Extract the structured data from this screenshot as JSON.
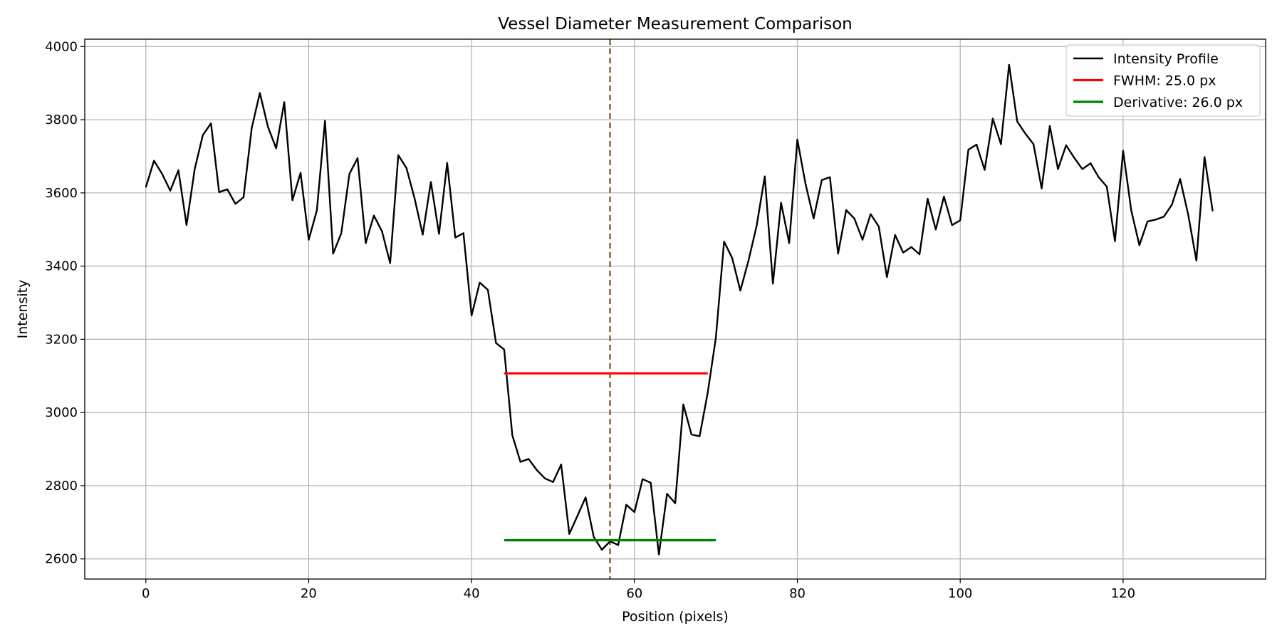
{
  "chart_data": {
    "type": "line",
    "title": "Vessel Diameter Measurement Comparison",
    "xlabel": "Position (pixels)",
    "ylabel": "Intensity",
    "xlim": [
      -7.5,
      137.5
    ],
    "ylim": [
      2545,
      4020
    ],
    "xticks": [
      0,
      20,
      40,
      60,
      80,
      100,
      120
    ],
    "yticks": [
      2600,
      2800,
      3000,
      3200,
      3400,
      3600,
      3800,
      4000
    ],
    "grid": true,
    "legend_position": "top-right",
    "series": [
      {
        "name": "Intensity Profile",
        "color": "#000000",
        "x": [
          0,
          1,
          2,
          3,
          4,
          5,
          6,
          7,
          8,
          9,
          10,
          11,
          12,
          13,
          14,
          15,
          16,
          17,
          18,
          19,
          20,
          21,
          22,
          23,
          24,
          25,
          26,
          27,
          28,
          29,
          30,
          31,
          32,
          33,
          34,
          35,
          36,
          37,
          38,
          39,
          40,
          41,
          42,
          43,
          44,
          45,
          46,
          47,
          48,
          49,
          50,
          51,
          52,
          53,
          54,
          55,
          56,
          57,
          58,
          59,
          60,
          61,
          62,
          63,
          64,
          65,
          66,
          67,
          68,
          69,
          70,
          71,
          72,
          73,
          74,
          75,
          76,
          77,
          78,
          79,
          80,
          81,
          82,
          83,
          84,
          85,
          86,
          87,
          88,
          89,
          90,
          91,
          92,
          93,
          94,
          95,
          96,
          97,
          98,
          99,
          100,
          101,
          102,
          103,
          104,
          105,
          106,
          107,
          108,
          109,
          110,
          111,
          112,
          113,
          114,
          115,
          116,
          117,
          118,
          119,
          120,
          121,
          122,
          123,
          124,
          125,
          126,
          127,
          128,
          129,
          130,
          131
        ],
        "y": [
          3615,
          3688,
          3652,
          3606,
          3662,
          3512,
          3665,
          3758,
          3790,
          3602,
          3610,
          3570,
          3588,
          3777,
          3873,
          3780,
          3722,
          3848,
          3580,
          3655,
          3472,
          3552,
          3797,
          3434,
          3490,
          3652,
          3695,
          3463,
          3538,
          3495,
          3408,
          3703,
          3668,
          3585,
          3486,
          3630,
          3488,
          3682,
          3478,
          3490,
          3265,
          3355,
          3335,
          3190,
          3172,
          2938,
          2865,
          2873,
          2843,
          2820,
          2810,
          2858,
          2668,
          2718,
          2768,
          2660,
          2625,
          2648,
          2638,
          2748,
          2728,
          2818,
          2808,
          2612,
          2778,
          2752,
          3022,
          2940,
          2935,
          3055,
          3205,
          3467,
          3422,
          3333,
          3415,
          3510,
          3645,
          3352,
          3573,
          3463,
          3746,
          3625,
          3530,
          3635,
          3643,
          3434,
          3553,
          3530,
          3472,
          3542,
          3508,
          3370,
          3485,
          3437,
          3452,
          3432,
          3584,
          3500,
          3590,
          3512,
          3525,
          3718,
          3732,
          3663,
          3803,
          3733,
          3950,
          3795,
          3762,
          3733,
          3612,
          3783,
          3665,
          3730,
          3696,
          3665,
          3681,
          3643,
          3617,
          3468,
          3715,
          3552,
          3457,
          3522,
          3527,
          3535,
          3568,
          3638,
          3540,
          3415,
          3698,
          3550
        ]
      },
      {
        "name": "FWHM: 25.0 px",
        "color": "#ff0000",
        "x": [
          44,
          69
        ],
        "y": [
          3107,
          3107
        ]
      },
      {
        "name": "Derivative: 26.0 px",
        "color": "#008000",
        "x": [
          44,
          70
        ],
        "y": [
          2651,
          2651
        ]
      }
    ],
    "center_line": {
      "x": 57,
      "color": "#8c6b3a",
      "style": "dashed"
    }
  }
}
